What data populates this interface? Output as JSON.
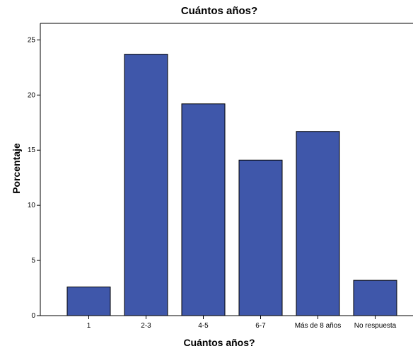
{
  "chart_data": {
    "type": "bar",
    "title": "Cuántos años?",
    "xlabel": "Cuántos años?",
    "ylabel": "Porcentaje",
    "categories": [
      "1",
      "2-3",
      "4-5",
      "6-7",
      "Más de 8 años",
      "No respuesta"
    ],
    "values": [
      2.6,
      23.7,
      19.2,
      14.1,
      16.7,
      3.2
    ],
    "ylim": [
      0,
      26.5
    ],
    "yticks": [
      0,
      5,
      10,
      15,
      20,
      25
    ],
    "grid": false,
    "legend": "none",
    "colors": {
      "bar_fill": "#3f57aa",
      "bar_stroke": "#000000",
      "axis": "#000000",
      "background": "#ffffff"
    }
  }
}
